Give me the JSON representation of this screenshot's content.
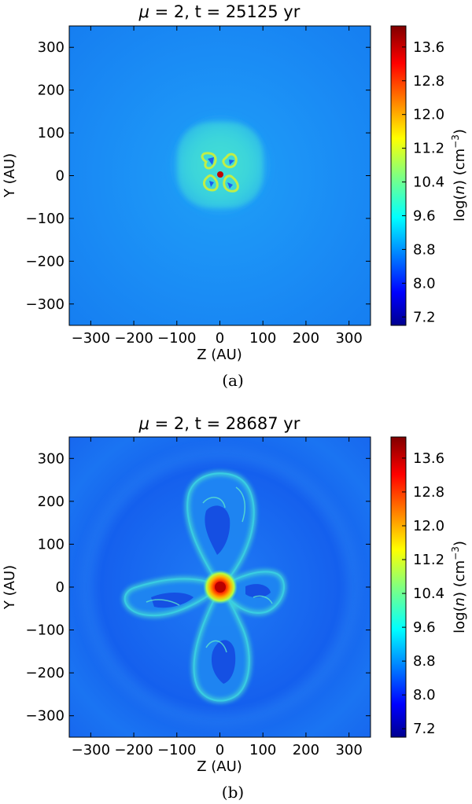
{
  "chart_data": [
    {
      "type": "heatmap",
      "title_prefix": "μ",
      "title_rest": " = 2, t = 25125 yr",
      "xlabel": "Z (AU)",
      "ylabel": "Y (AU)",
      "colorbar_label_prefix": "log(",
      "colorbar_label_var": "n",
      "colorbar_label_mid": ") (cm",
      "colorbar_label_exp": "−3",
      "colorbar_label_end": ")",
      "xlim": [
        -350,
        350
      ],
      "ylim": [
        -350,
        350
      ],
      "x_ticks": [
        -300,
        -200,
        -100,
        0,
        100,
        200,
        300
      ],
      "x_tick_labels": [
        "−300",
        "−200",
        "−100",
        "0",
        "100",
        "200",
        "300"
      ],
      "y_ticks": [
        300,
        200,
        100,
        0,
        -100,
        -200,
        -300
      ],
      "y_tick_labels": [
        "300",
        "200",
        "100",
        "0",
        "−100",
        "−200",
        "−300"
      ],
      "colorbar_range": [
        7.0,
        14.1
      ],
      "colorbar_ticks": [
        "13.6",
        "12.8",
        "12.0",
        "11.2",
        "10.4",
        "9.6",
        "8.8",
        "8.0",
        "7.2"
      ],
      "colorbar_tick_values": [
        13.6,
        12.8,
        12.0,
        11.2,
        10.4,
        9.6,
        8.8,
        8.0,
        7.2
      ],
      "caption": "(a)",
      "colormap": "jet"
    },
    {
      "type": "heatmap",
      "title_prefix": "μ",
      "title_rest": " = 2, t = 28687 yr",
      "xlabel": "Z (AU)",
      "ylabel": "Y (AU)",
      "colorbar_label_prefix": "log(",
      "colorbar_label_var": "n",
      "colorbar_label_mid": ") (cm",
      "colorbar_label_exp": "−3",
      "colorbar_label_end": ")",
      "xlim": [
        -350,
        350
      ],
      "ylim": [
        -350,
        350
      ],
      "x_ticks": [
        -300,
        -200,
        -100,
        0,
        100,
        200,
        300
      ],
      "x_tick_labels": [
        "−300",
        "−200",
        "−100",
        "0",
        "100",
        "200",
        "300"
      ],
      "y_ticks": [
        300,
        200,
        100,
        0,
        -100,
        -200,
        -300
      ],
      "y_tick_labels": [
        "300",
        "200",
        "100",
        "0",
        "−100",
        "−200",
        "−300"
      ],
      "colorbar_range": [
        7.0,
        14.1
      ],
      "colorbar_ticks": [
        "13.6",
        "12.8",
        "12.0",
        "11.2",
        "10.4",
        "9.6",
        "8.8",
        "8.0",
        "7.2"
      ],
      "colorbar_tick_values": [
        13.6,
        12.8,
        12.0,
        11.2,
        10.4,
        9.6,
        8.8,
        8.0,
        7.2
      ],
      "caption": "(b)",
      "colormap": "jet"
    }
  ]
}
